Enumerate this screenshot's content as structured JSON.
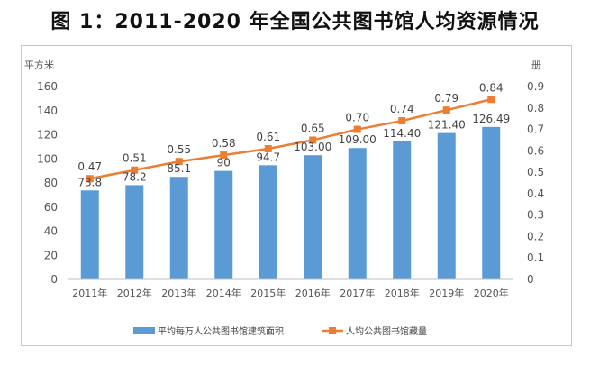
{
  "chart_data": {
    "type": "bar",
    "title": "图 1：2011-2020 年全国公共图书馆人均资源情况",
    "y_left_label": "平方米",
    "y_right_label": "册",
    "categories": [
      "2011年",
      "2012年",
      "2013年",
      "2014年",
      "2015年",
      "2016年",
      "2017年",
      "2018年",
      "2019年",
      "2020年"
    ],
    "series": [
      {
        "name": "平均每万人公共图书馆建筑面积",
        "type": "bar",
        "axis": "left",
        "color": "#5b9bd5",
        "values": [
          73.8,
          78.2,
          85.1,
          90,
          94.7,
          103.0,
          109.0,
          114.4,
          121.4,
          126.49
        ],
        "labels": [
          "73.8",
          "78.2",
          "85.1",
          "90",
          "94.7",
          "103.00",
          "109.00",
          "114.40",
          "121.40",
          "126.49"
        ]
      },
      {
        "name": "人均公共图书馆藏量",
        "type": "line",
        "axis": "right",
        "color": "#ed7d31",
        "values": [
          0.47,
          0.51,
          0.55,
          0.58,
          0.61,
          0.65,
          0.7,
          0.74,
          0.79,
          0.84
        ],
        "labels": [
          "0.47",
          "0.51",
          "0.55",
          "0.58",
          "0.61",
          "0.65",
          "0.70",
          "0.74",
          "0.79",
          "0.84"
        ]
      }
    ],
    "y_left": {
      "min": 0,
      "max": 160,
      "step": 20,
      "ticks": [
        "0",
        "20",
        "40",
        "60",
        "80",
        "100",
        "120",
        "140",
        "160"
      ]
    },
    "y_right": {
      "min": 0,
      "max": 0.9,
      "step": 0.1,
      "ticks": [
        "0",
        "0.1",
        "0.2",
        "0.3",
        "0.4",
        "0.5",
        "0.6",
        "0.7",
        "0.8",
        "0.9"
      ]
    },
    "grid": false,
    "legend_position": "bottom"
  }
}
